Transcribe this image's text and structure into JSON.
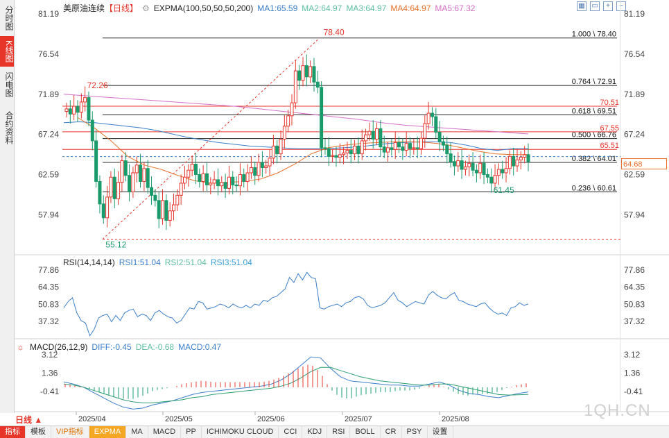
{
  "sidebar": {
    "tabs": [
      {
        "label": "分时图",
        "active": false
      },
      {
        "label": "K线图",
        "active": true
      },
      {
        "label": "闪电图",
        "active": false
      },
      {
        "label": "合约资料",
        "active": false
      }
    ]
  },
  "header": {
    "symbol": "美原油连续",
    "period_tag": "【日线】",
    "indicator": "EXPMA(100,50,50,50,200)",
    "ma1": "MA1:65.59",
    "ma2": "MA2:64.97",
    "ma3": "MA3:64.97",
    "ma4": "MA4:64.97",
    "ma5": "MA5:67.32"
  },
  "rsi_header": {
    "name": "RSI(14,14,14)",
    "rsi1": "RSI1:51.04",
    "rsi2": "RSI2:51.04",
    "rsi3": "RSI3:51.04"
  },
  "macd_header": {
    "name": "MACD(26,12,9)",
    "diff": "DIFF:-0.45",
    "dea": "DEA:-0.68",
    "macd": "MACD:0.47"
  },
  "last_price": "64.68",
  "period_button": "日线 ▲",
  "watermark": "1QH.CN",
  "bottom_tabs": [
    "指标",
    "模板",
    "VIP指标",
    "EXPMA",
    "MA",
    "MACD",
    "PP",
    "ICHIMOKU CLOUD",
    "CCI",
    "KDJ",
    "RSI",
    "BOLL",
    "CR",
    "PSY",
    "设置"
  ],
  "colors": {
    "up": "#e8352a",
    "down": "#1a9b6b",
    "accent": "#e8352a",
    "ma1": "#3a7ecb",
    "ma2": "#5fbf9f",
    "ma4": "#e8702a",
    "ma5": "#d46ec8"
  },
  "chart_data": {
    "type": "candlestick",
    "price_ticks": [
      "81.19",
      "76.54",
      "71.89",
      "67.24",
      "62.59",
      "57.94"
    ],
    "rsi_ticks": [
      "77.86",
      "64.35",
      "50.83",
      "37.32"
    ],
    "macd_ticks": [
      "3.12",
      "1.36",
      "-0.41"
    ],
    "x_labels": [
      "2025/04",
      "2025/05",
      "2025/06",
      "2025/07",
      "2025/08"
    ],
    "fib_levels": [
      {
        "label": "1.000 \\ 78.40",
        "value": 78.4
      },
      {
        "label": "0.764 \\ 72.91",
        "value": 72.91
      },
      {
        "label": "0.618 \\ 69.51",
        "value": 69.51
      },
      {
        "label": "0.500 \\ 66.76",
        "value": 66.76
      },
      {
        "label": "0.382 \\ 64.01",
        "value": 64.01
      },
      {
        "label": "0.236 \\ 60.61",
        "value": 60.61
      }
    ],
    "price_lines": [
      {
        "label": "70.51",
        "value": 70.51
      },
      {
        "label": "67.55",
        "value": 67.55
      },
      {
        "label": "65.51",
        "value": 65.51
      }
    ],
    "annotations": [
      {
        "label": "78.40",
        "bar": 69,
        "value": 78.4
      },
      {
        "label": "72.26",
        "bar": 5,
        "value": 72.26
      },
      {
        "label": "55.12",
        "bar": 10,
        "value": 55.12
      },
      {
        "label": "61.45",
        "bar": 115,
        "value": 61.45
      }
    ],
    "closes": [
      70.2,
      69.6,
      70.5,
      69.8,
      71.0,
      71.5,
      68.9,
      66.5,
      61.8,
      59.2,
      57.6,
      60.0,
      62.3,
      59.8,
      61.7,
      64.2,
      62.5,
      60.6,
      62.8,
      63.7,
      61.8,
      63.3,
      61.1,
      60.2,
      59.6,
      57.5,
      59.6,
      57.3,
      58.4,
      59.1,
      60.2,
      61.6,
      62.3,
      63.1,
      63.8,
      62.6,
      61.8,
      62.7,
      61.4,
      61.6,
      62.0,
      61.3,
      61.7,
      61.0,
      62.3,
      61.4,
      61.3,
      62.6,
      61.8,
      62.8,
      63.4,
      62.5,
      64.0,
      63.4,
      63.6,
      64.5,
      65.9,
      65.0,
      66.7,
      68.2,
      69.4,
      70.9,
      74.6,
      73.5,
      75.2,
      73.9,
      75.1,
      73.3,
      72.7,
      65.7,
      65.6,
      64.7,
      64.8,
      64.6,
      64.9,
      65.1,
      65.4,
      65.0,
      65.9,
      65.0,
      66.5,
      67.2,
      67.6,
      66.7,
      67.9,
      65.8,
      65.2,
      65.7,
      65.5,
      66.3,
      65.8,
      65.4,
      66.2,
      65.6,
      65.7,
      65.6,
      66.8,
      68.5,
      69.7,
      69.3,
      67.5,
      66.4,
      66.0,
      65.0,
      64.1,
      63.6,
      64.2,
      63.2,
      63.5,
      63.9,
      63.1,
      62.8,
      63.9,
      62.6,
      62.3,
      61.6,
      62.5,
      63.2,
      62.8,
      63.3,
      64.7,
      63.6,
      64.3,
      64.6,
      64.9,
      64.1
    ],
    "ma1_points": [
      68.6,
      68.7,
      68.6,
      68.4,
      68.2,
      68.0,
      67.7,
      67.3,
      66.9,
      66.6,
      66.3,
      66.1,
      65.9,
      65.8,
      65.7,
      65.6,
      65.6,
      65.6,
      65.7,
      65.8,
      66.0,
      66.2,
      66.3,
      66.4,
      66.4,
      66.3,
      66.0,
      65.6,
      65.4,
      65.6,
      65.6
    ],
    "ma4_points": [
      69.2,
      68.0,
      66.5,
      64.7,
      63.7,
      63.2,
      62.5,
      61.9,
      61.6,
      61.7,
      61.8,
      62.1,
      62.8,
      63.8,
      65.0,
      65.7,
      66.0,
      66.2,
      66.3,
      66.4,
      66.4,
      66.3,
      66.1,
      65.7,
      65.3,
      65.0,
      64.9,
      64.9
    ],
    "ma5_points": [
      71.9,
      71.7,
      71.5,
      71.3,
      71.1,
      70.9,
      70.7,
      70.5,
      70.2,
      69.9,
      69.6,
      69.3,
      69.0,
      68.6,
      68.3,
      68.1,
      67.9,
      67.7,
      67.5,
      67.3
    ],
    "rsi_points": [
      48,
      53,
      56,
      44,
      38,
      36,
      26,
      31,
      40,
      42,
      43,
      37,
      42,
      38,
      44,
      46,
      47,
      41,
      43,
      42,
      38,
      44,
      46,
      43,
      41,
      40,
      36,
      38,
      43,
      48,
      47,
      53,
      52,
      47,
      48,
      49,
      51,
      50,
      48,
      51,
      49,
      48,
      50,
      48,
      51,
      50,
      54,
      53,
      56,
      57,
      60,
      63,
      72,
      68,
      75,
      70,
      76,
      72,
      71,
      48,
      47,
      49,
      50,
      51,
      49,
      52,
      53,
      56,
      57,
      55,
      50,
      48,
      49,
      50,
      52,
      56,
      60,
      54,
      52,
      49,
      51,
      53,
      52,
      51,
      58,
      61,
      58,
      56,
      55,
      58,
      60,
      54,
      53,
      51,
      50,
      49,
      51,
      52,
      48,
      45,
      43,
      44,
      42,
      48,
      49,
      52,
      50,
      51
    ],
    "diff_points": [
      0.5,
      0.3,
      0.0,
      -0.5,
      -1.0,
      -1.5,
      -1.9,
      -2.1,
      -2.0,
      -1.7,
      -1.5,
      -1.3,
      -1.0,
      -0.7,
      -0.5,
      -0.4,
      -0.3,
      -0.2,
      -0.1,
      0.0,
      0.1,
      0.3,
      0.7,
      1.3,
      2.1,
      2.9,
      2.8,
      1.8,
      1.0,
      0.6,
      0.5,
      0.4,
      0.3,
      0.2,
      0.2,
      0.1,
      0.1,
      0.3,
      0.5,
      0.2,
      -0.3,
      -0.6,
      -0.7,
      -0.9,
      -1.0,
      -0.8,
      -0.6,
      -0.45
    ],
    "dea_points": [
      0.3,
      0.2,
      0.0,
      -0.3,
      -0.6,
      -0.9,
      -1.2,
      -1.4,
      -1.5,
      -1.5,
      -1.4,
      -1.3,
      -1.2,
      -1.0,
      -0.9,
      -0.7,
      -0.6,
      -0.5,
      -0.4,
      -0.3,
      -0.2,
      -0.1,
      0.1,
      0.4,
      0.9,
      1.5,
      1.9,
      1.9,
      1.6,
      1.3,
      1.0,
      0.8,
      0.6,
      0.5,
      0.4,
      0.3,
      0.2,
      0.2,
      0.3,
      0.3,
      0.1,
      -0.1,
      -0.3,
      -0.5,
      -0.7,
      -0.75,
      -0.72,
      -0.68
    ]
  }
}
